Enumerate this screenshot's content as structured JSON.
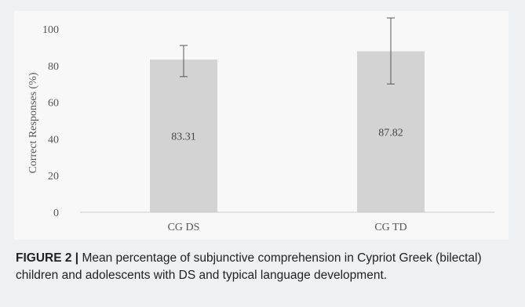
{
  "chart_data": {
    "type": "bar",
    "categories": [
      "CG DS",
      "CG TD"
    ],
    "values": [
      83.31,
      87.82
    ],
    "error_low": [
      74,
      70
    ],
    "error_high": [
      91,
      106
    ],
    "data_labels": [
      "83.31",
      "87.82"
    ],
    "ylabel": "Correct Responses (%)",
    "ylim": [
      0,
      100
    ],
    "yticks": [
      "0",
      "20",
      "40",
      "60",
      "80",
      "100"
    ],
    "grid": false,
    "legend": "none",
    "colors": {
      "bar": "#d3d3d3",
      "error_bar": "#555555",
      "axis": "#cccccc"
    }
  },
  "caption": {
    "label": "FIGURE 2 |",
    "text": " Mean percentage of subjunctive comprehension in Cypriot Greek (bilectal) children and adolescents with DS and typical language development."
  }
}
